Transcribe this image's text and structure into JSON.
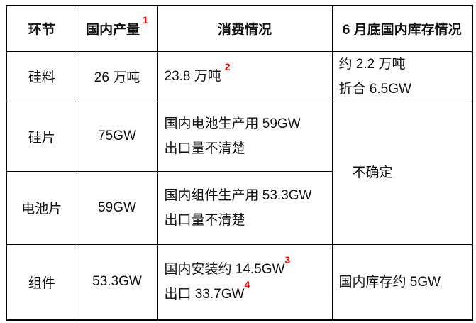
{
  "colors": {
    "background": "#ffffff",
    "text": "#111111",
    "border": "#000000",
    "footnote_red": "#f40000"
  },
  "table": {
    "headers": [
      {
        "label": "环节"
      },
      {
        "label": "国内产量",
        "sup": "1"
      },
      {
        "label": "消费情况"
      },
      {
        "label": "6 月底国内库存情况"
      }
    ],
    "rows": [
      {
        "stage": "硅料",
        "production": "26 万吨",
        "consumption": [
          {
            "text": "23.8 万吨",
            "sup": "2"
          }
        ],
        "inventory": [
          {
            "text": "约 2.2 万吨"
          },
          {
            "text": "折合 6.5GW"
          }
        ]
      },
      {
        "stage": "硅片",
        "production": "75GW",
        "consumption": [
          {
            "text": "国内电池生产用 59GW"
          },
          {
            "text": "出口量不清楚"
          }
        ],
        "inventory": [
          {
            "text": "不确定"
          }
        ]
      },
      {
        "stage": "电池片",
        "production": "59GW",
        "consumption": [
          {
            "text": "国内组件生产用 53.3GW"
          },
          {
            "text": "出口量不清楚"
          }
        ],
        "inventory": []
      },
      {
        "stage": "组件",
        "production": "53.3GW",
        "consumption": [
          {
            "text": "国内安装约 14.5GW",
            "sup": "3"
          },
          {
            "text": "出口 33.7GW",
            "sup": "4"
          }
        ],
        "inventory": [
          {
            "text": "国内库存约 5GW"
          }
        ]
      }
    ]
  }
}
